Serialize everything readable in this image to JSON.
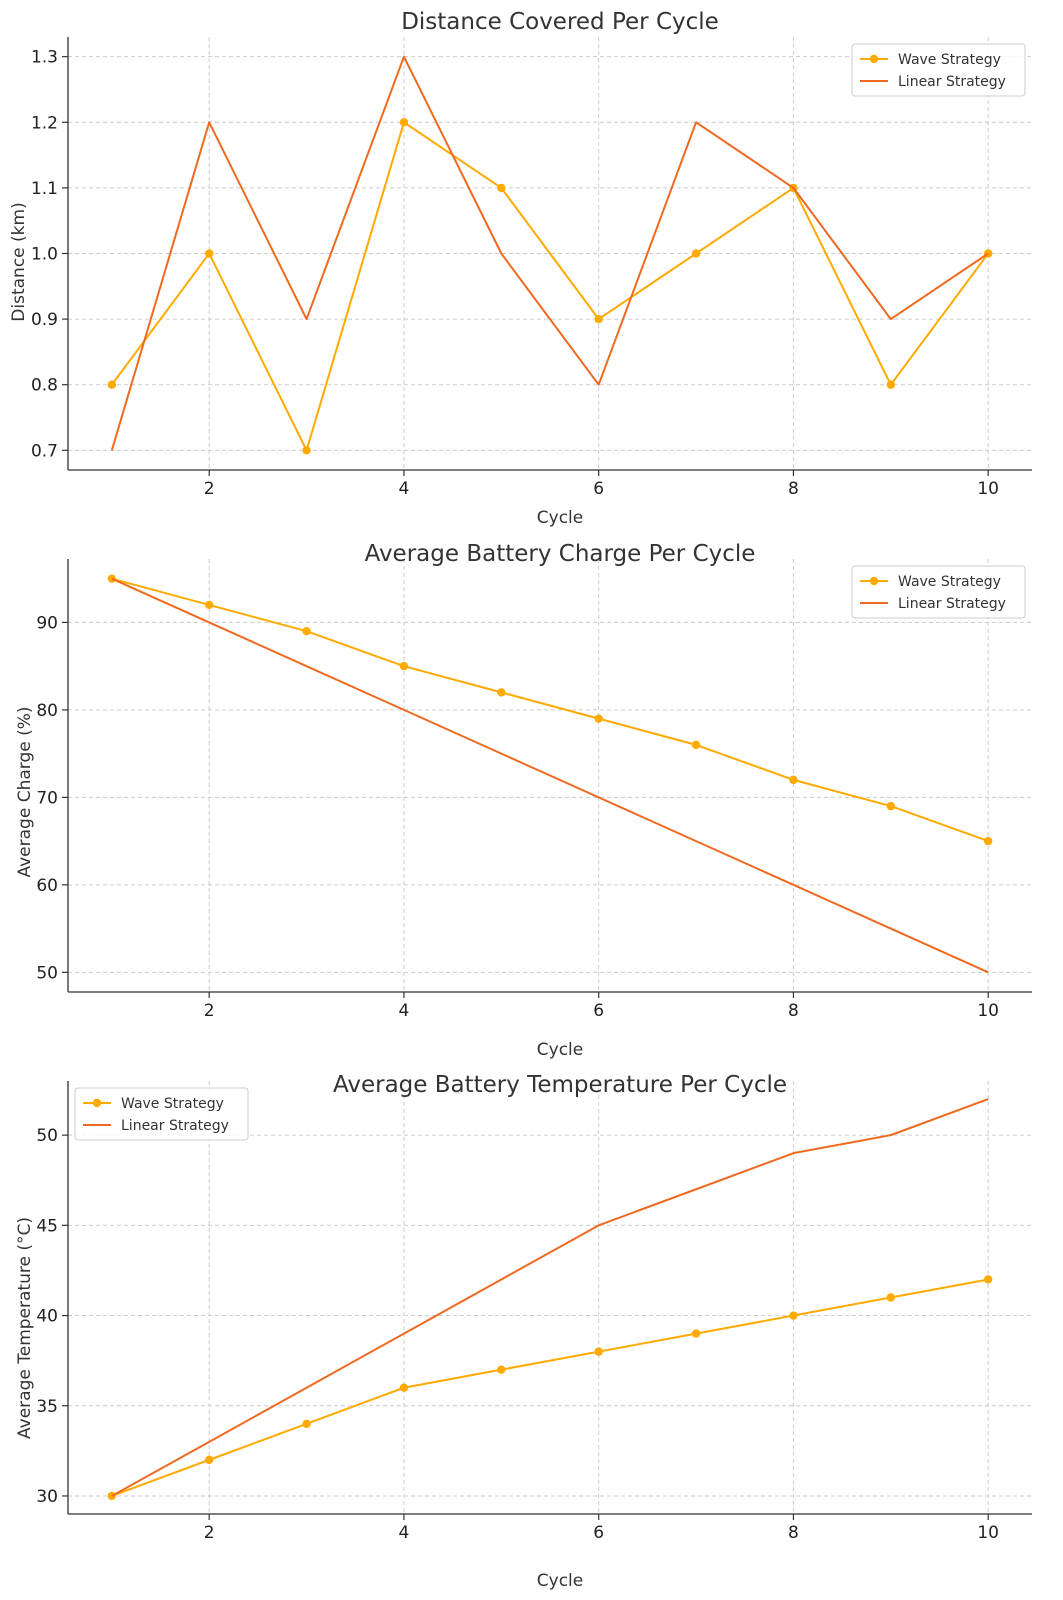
{
  "chart_data": [
    {
      "type": "line",
      "title": "Distance Covered Per Cycle",
      "xlabel": "Cycle",
      "ylabel": "Distance (km)",
      "x": [
        1,
        2,
        3,
        4,
        5,
        6,
        7,
        8,
        9,
        10
      ],
      "xlim": [
        0.55,
        10.45
      ],
      "ylim": [
        0.67,
        1.33
      ],
      "xticks": [
        2,
        4,
        6,
        8,
        10
      ],
      "yticks": [
        0.7,
        0.8,
        0.9,
        1.0,
        1.1,
        1.2,
        1.3
      ],
      "ytick_labels": [
        "0.7",
        "0.8",
        "0.9",
        "1.0",
        "1.1",
        "1.2",
        "1.3"
      ],
      "grid": true,
      "legend": "top-right",
      "series": [
        {
          "name": "Wave Strategy",
          "color": "#FFAA00",
          "marker": true,
          "values": [
            0.8,
            1.0,
            0.7,
            1.2,
            1.1,
            0.9,
            1.0,
            1.1,
            0.8,
            1.0
          ]
        },
        {
          "name": "Linear Strategy",
          "color": "#F06920",
          "marker": false,
          "values": [
            0.7,
            1.2,
            0.9,
            1.3,
            1.0,
            0.8,
            1.2,
            1.1,
            0.9,
            1.0
          ]
        }
      ]
    },
    {
      "type": "line",
      "title": "Average Battery Charge Per Cycle",
      "xlabel": "Cycle",
      "ylabel": "Average Charge (%)",
      "x": [
        1,
        2,
        3,
        4,
        5,
        6,
        7,
        8,
        9,
        10
      ],
      "xlim": [
        0.55,
        10.45
      ],
      "ylim": [
        47.75,
        97.25
      ],
      "xticks": [
        2,
        4,
        6,
        8,
        10
      ],
      "yticks": [
        50,
        60,
        70,
        80,
        90
      ],
      "ytick_labels": [
        "50",
        "60",
        "70",
        "80",
        "90"
      ],
      "grid": true,
      "legend": "top-right",
      "series": [
        {
          "name": "Wave Strategy",
          "color": "#FFAA00",
          "marker": true,
          "values": [
            95,
            92,
            89,
            85,
            82,
            79,
            76,
            72,
            69,
            65
          ]
        },
        {
          "name": "Linear Strategy",
          "color": "#F06920",
          "marker": false,
          "values": [
            95,
            90,
            85,
            80,
            75,
            70,
            65,
            60,
            55,
            50
          ]
        }
      ]
    },
    {
      "type": "line",
      "title": "Average Battery Temperature Per Cycle",
      "xlabel": "Cycle",
      "ylabel": "Average Temperature (°C)",
      "x": [
        1,
        2,
        3,
        4,
        5,
        6,
        7,
        8,
        9,
        10
      ],
      "xlim": [
        0.55,
        10.45
      ],
      "ylim": [
        29.0,
        53.0
      ],
      "xticks": [
        2,
        4,
        6,
        8,
        10
      ],
      "yticks": [
        30,
        35,
        40,
        45,
        50
      ],
      "ytick_labels": [
        "30",
        "35",
        "40",
        "45",
        "50"
      ],
      "grid": true,
      "legend": "top-left",
      "series": [
        {
          "name": "Wave Strategy",
          "color": "#FFAA00",
          "marker": true,
          "values": [
            30,
            32,
            34,
            36,
            37,
            38,
            39,
            40,
            41,
            42
          ]
        },
        {
          "name": "Linear Strategy",
          "color": "#F06920",
          "marker": false,
          "values": [
            30,
            33,
            36,
            39,
            42,
            45,
            47,
            49,
            50,
            52
          ]
        }
      ]
    }
  ]
}
